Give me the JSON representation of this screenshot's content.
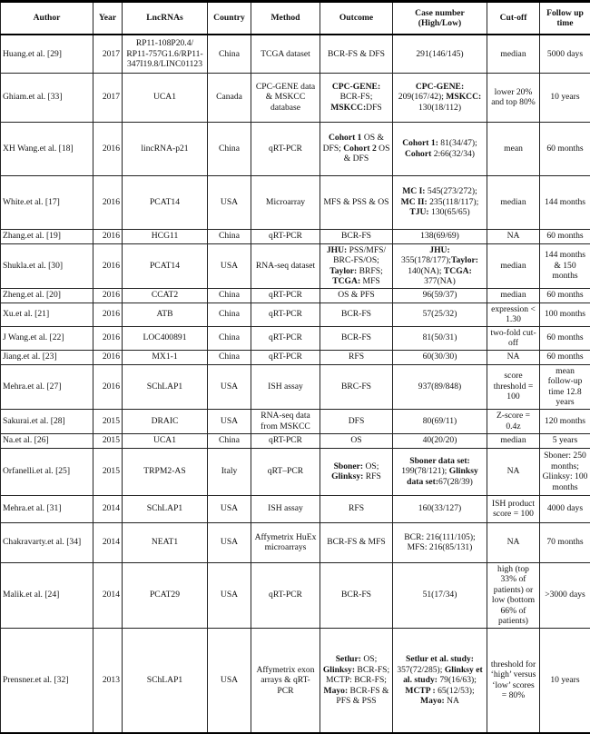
{
  "headers": [
    "Author",
    "Year",
    "LncRNAs",
    "Country",
    "Method",
    "Outcome",
    "Case number (High/Low)",
    "Cut-off",
    "Follow up time"
  ],
  "rows": [
    {
      "h": 42,
      "cells": [
        "Huang.et al. [29]",
        "2017",
        "RP11-108P20.4/ RP11-757G1.6/RP11-347I19.8/LINC01123",
        "China",
        "TCGA dataset",
        "BCR-FS & DFS",
        "291(146/145)",
        "median",
        "5000 days"
      ]
    },
    {
      "h": 54,
      "cells": [
        "Ghiam.et al. [33]",
        "2017",
        "UCA1",
        "Canada",
        "CPC-GENE data & MSKCC database",
        [
          {
            "t": "CPC-GENE:",
            "b": true
          },
          {
            "t": " BCR-FS; "
          },
          {
            "t": "MSKCC:",
            "b": true
          },
          {
            "t": "DFS"
          }
        ],
        [
          {
            "t": "CPC-GENE:",
            "b": true
          },
          {
            "t": " 209(167/42); "
          },
          {
            "t": "MSKCC:",
            "b": true
          },
          {
            "t": " 130(18/112)"
          }
        ],
        "lower 20% and top 80%",
        "10 years"
      ]
    },
    {
      "h": 59,
      "cells": [
        "XH Wang.et al. [18]",
        "2016",
        "lincRNA-p21",
        "China",
        "qRT-PCR",
        [
          {
            "t": "Cohort 1",
            "b": true
          },
          {
            "t": " OS & DFS; "
          },
          {
            "t": "Cohort 2",
            "b": true
          },
          {
            "t": " OS & DFS"
          }
        ],
        [
          {
            "t": "Cohort 1:",
            "b": true
          },
          {
            "t": " 81(34/47); "
          },
          {
            "t": "Cohort",
            "b": true
          },
          {
            "t": " 2:66(32/34)"
          }
        ],
        "mean",
        "60 months"
      ]
    },
    {
      "h": 59,
      "cells": [
        "White.et al. [17]",
        "2016",
        "PCAT14",
        "USA",
        "Microarray",
        "MFS & PSS & OS",
        [
          {
            "t": "MC I:",
            "b": true
          },
          {
            "t": " 545(273/272); "
          },
          {
            "t": "MC II:",
            "b": true
          },
          {
            "t": " 235(118/117); "
          },
          {
            "t": "TJU:",
            "b": true
          },
          {
            "t": " 130(65/65)"
          }
        ],
        "median",
        "144 months"
      ]
    },
    {
      "h": 16,
      "cells": [
        "Zhang.et al. [19]",
        "2016",
        "HCG11",
        "China",
        "qRT-PCR",
        "BCR-FS",
        "138(69/69)",
        "NA",
        "60 months"
      ]
    },
    {
      "h": 49,
      "cells": [
        "Shukla.et al. [30]",
        "2016",
        "PCAT14",
        "USA",
        "RNA-seq dataset",
        [
          {
            "t": "JHU:",
            "b": true
          },
          {
            "t": " PSS/MFS/ BRC-FS/OS; "
          },
          {
            "t": "Taylor:",
            "b": true
          },
          {
            "t": " BRFS; "
          },
          {
            "t": "TCGA:",
            "b": true
          },
          {
            "t": " MFS"
          }
        ],
        [
          {
            "t": "JHU:",
            "b": true
          },
          {
            "t": " 355(178/177);"
          },
          {
            "t": "Taylor:",
            "b": true
          },
          {
            "t": " 140(NA); "
          },
          {
            "t": "TCGA:",
            "b": true
          },
          {
            "t": " 377(NA)"
          }
        ],
        "median",
        "144 months & 150 months"
      ]
    },
    {
      "h": 16,
      "cells": [
        "Zheng.et al. [20]",
        "2016",
        "CCAT2",
        "China",
        "qRT-PCR",
        "OS & PFS",
        "96(59/37)",
        "median",
        "60 months"
      ]
    },
    {
      "h": 25,
      "cells": [
        "Xu.et al. [21]",
        "2016",
        "ATB",
        "China",
        "qRT-PCR",
        "BCR-FS",
        "57(25/32)",
        "expression < 1.30",
        "100 months"
      ]
    },
    {
      "h": 25,
      "cells": [
        "J Wang.et al. [22]",
        "2016",
        "LOC400891",
        "China",
        "qRT-PCR",
        "BCR-FS",
        "81(50/31)",
        "two-fold cut-off",
        "60 months"
      ]
    },
    {
      "h": 16,
      "cells": [
        "Jiang.et al. [23]",
        "2016",
        "MX1-1",
        "China",
        "qRT-PCR",
        "RFS",
        "60(30/30)",
        "NA",
        "60 months"
      ]
    },
    {
      "h": 46,
      "cells": [
        "Mehra.et al. [27]",
        "2016",
        "SChLAP1",
        "USA",
        "ISH assay",
        "BRC-FS",
        "937(89/848)",
        "score threshold = 100",
        "mean follow-up time 12.8 years"
      ]
    },
    {
      "h": 27,
      "cells": [
        "Sakurai.et al. [28]",
        "2015",
        "DRAIC",
        "USA",
        "RNA-seq data from MSKCC",
        "DFS",
        "80(69/11)",
        "Z-score = 0.4z",
        "120 months"
      ]
    },
    {
      "h": 16,
      "cells": [
        "Na.et al. [26]",
        "2015",
        "UCA1",
        "China",
        "qRT-PCR",
        "OS",
        "40(20/20)",
        "median",
        "5 years"
      ]
    },
    {
      "h": 52,
      "cells": [
        "Orfanelli.et al. [25]",
        "2015",
        "TRPM2-AS",
        "Italy",
        "qRT–PCR",
        [
          {
            "t": "Sboner:",
            "b": true
          },
          {
            "t": " OS; "
          },
          {
            "t": "Glinksy:",
            "b": true
          },
          {
            "t": " RFS"
          }
        ],
        [
          {
            "t": "Sboner data set:",
            "b": true
          },
          {
            "t": " 199(78/121); "
          },
          {
            "t": "Glinksy data set:",
            "b": true
          },
          {
            "t": "67(28/39)"
          }
        ],
        "NA",
        "Sboner: 250 months; Glinksy: 100 months"
      ]
    },
    {
      "h": 30,
      "cells": [
        "Mehra.et al. [31]",
        "2014",
        "SChLAP1",
        "USA",
        "ISH assay",
        "RFS",
        "160(33/127)",
        "ISH product score = 100",
        "4000 days"
      ]
    },
    {
      "h": 44,
      "cells": [
        "Chakravarty.et al. [34]",
        "2014",
        "NEAT1",
        "USA",
        "Affymetrix HuEx microarrays",
        "BCR-FS & MFS",
        "BCR: 216(111/105); MFS: 216(85/131)",
        "NA",
        "70 months"
      ]
    },
    {
      "h": 58,
      "cells": [
        "Malik.et al. [24]",
        "2014",
        "PCAT29",
        "USA",
        "qRT-PCR",
        "BCR-FS",
        "51(17/34)",
        "high (top 33% of patients) or low (bottom 66% of patients)",
        ">3000 days"
      ]
    },
    {
      "h": 116,
      "cells": [
        "Prensner.et al. [32]",
        "2013",
        "SChLAP1",
        "USA",
        "Affymetrix exon arrays & qRT-PCR",
        [
          {
            "t": "Setlur:",
            "b": true
          },
          {
            "t": " OS; "
          },
          {
            "t": "Glinksy:",
            "b": true
          },
          {
            "t": " BCR-FS; MCTP: BCR-FS; "
          },
          {
            "t": "Mayo:",
            "b": true
          },
          {
            "t": " BCR-FS & PFS & PSS"
          }
        ],
        [
          {
            "t": "Setlur et al. study:",
            "b": true
          },
          {
            "t": " 357(72/285); "
          },
          {
            "t": "Glinksy et al. study:",
            "b": true
          },
          {
            "t": " 79(16/63); "
          },
          {
            "t": "MCTP :",
            "b": true
          },
          {
            "t": " 65(12/53); "
          },
          {
            "t": "Mayo:",
            "b": true
          },
          {
            "t": " NA"
          }
        ],
        "threshold for ‘high’ versus ‘low’ scores = 80%",
        "10 years"
      ]
    }
  ]
}
